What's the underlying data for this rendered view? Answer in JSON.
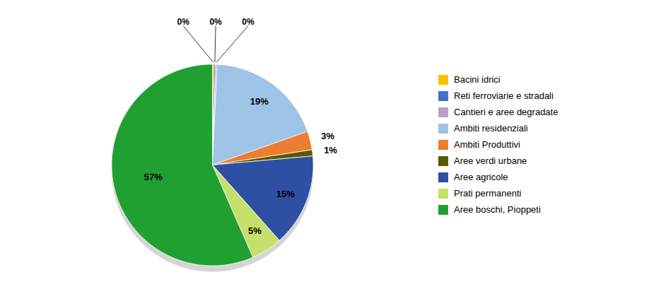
{
  "chart_data": {
    "type": "pie",
    "categories": [
      "Bacini idrici",
      "Reti ferroviarie e stradali",
      "Cantieri e aree degradate",
      "Ambiti residenziali",
      "Ambiti Produttivi",
      "Aree verdi urbane",
      "Aree agricole",
      "Prati permanenti",
      "Aree boschi, Pioppeti"
    ],
    "values": [
      0.25,
      0.25,
      0.25,
      19,
      3,
      1,
      15,
      5,
      57
    ],
    "value_labels": [
      "0%",
      "0%",
      "0%",
      "19%",
      "3%",
      "1%",
      "15%",
      "5%",
      "57%"
    ],
    "colors": [
      "#FFC000",
      "#4472C4",
      "#B8A0C8",
      "#9DC3E6",
      "#ED7D31",
      "#595900",
      "#2E4FA3",
      "#C5E06A",
      "#20A030"
    ],
    "data_labels": true,
    "legend": "right"
  }
}
